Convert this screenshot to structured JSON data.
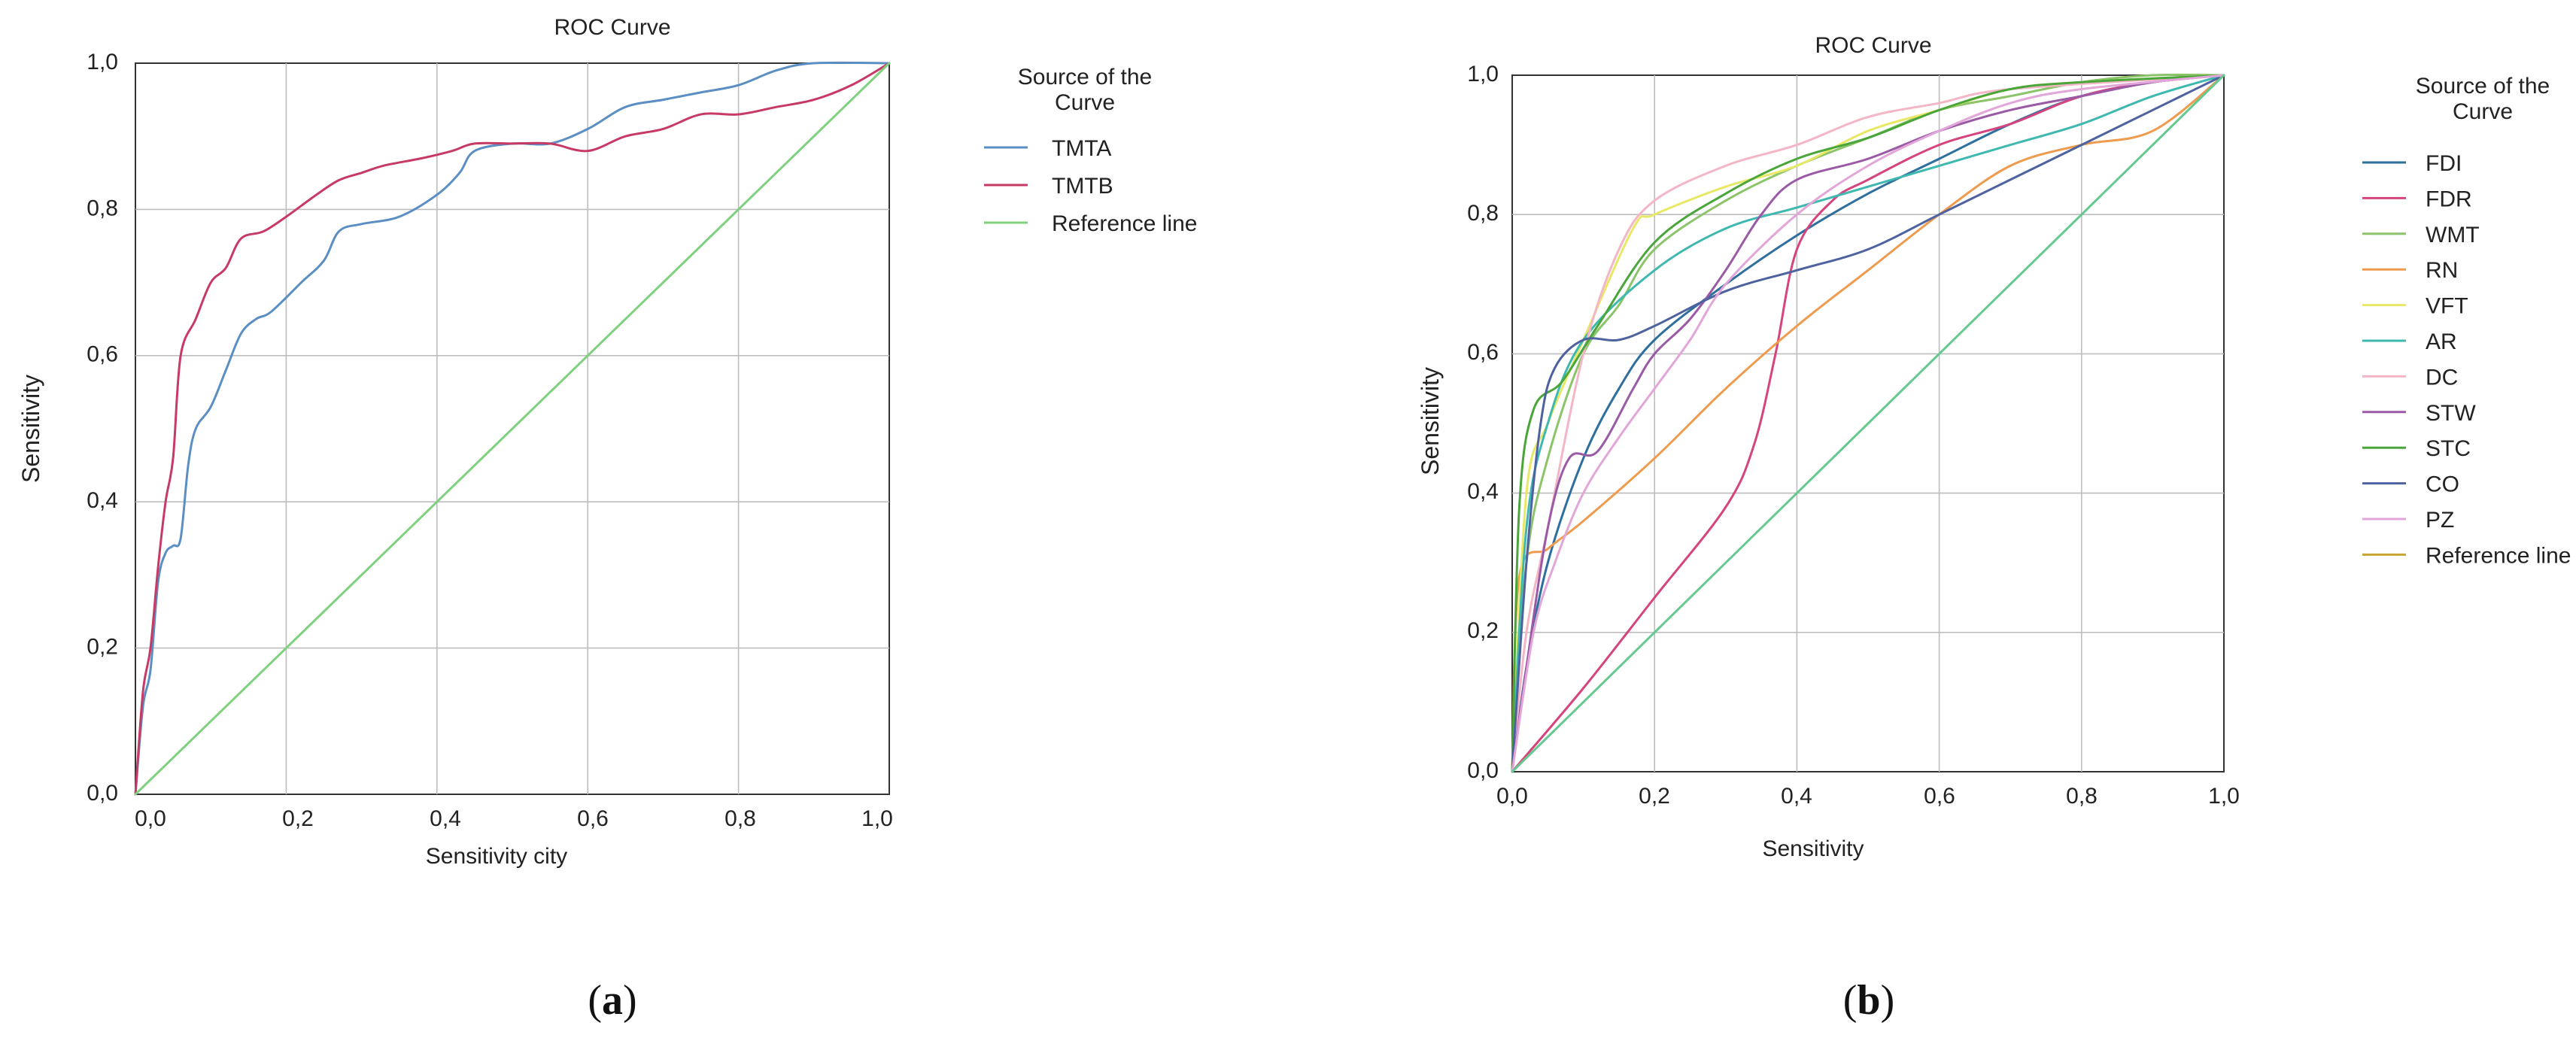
{
  "chart_data": [
    {
      "type": "line",
      "title": "ROC Curve",
      "xlabel": "Sensitivity city",
      "ylabel": "Sensitivity",
      "xlim": [
        0,
        1
      ],
      "ylim": [
        0,
        1
      ],
      "ticks": [
        "0,0",
        "0,2",
        "0,4",
        "0,6",
        "0,8",
        "1,0"
      ],
      "grid": true,
      "legend_title_line1": "Source of the",
      "legend_title_line2": "Curve",
      "panel_label": "(a)",
      "panel_letter": "a",
      "series": [
        {
          "name": "TMTA",
          "color": "#5b8fc4",
          "points": [
            [
              0,
              0
            ],
            [
              0.01,
              0.12
            ],
            [
              0.02,
              0.17
            ],
            [
              0.03,
              0.29
            ],
            [
              0.04,
              0.33
            ],
            [
              0.05,
              0.34
            ],
            [
              0.06,
              0.35
            ],
            [
              0.07,
              0.45
            ],
            [
              0.08,
              0.5
            ],
            [
              0.1,
              0.53
            ],
            [
              0.12,
              0.58
            ],
            [
              0.14,
              0.63
            ],
            [
              0.16,
              0.65
            ],
            [
              0.18,
              0.66
            ],
            [
              0.22,
              0.7
            ],
            [
              0.25,
              0.73
            ],
            [
              0.27,
              0.77
            ],
            [
              0.3,
              0.78
            ],
            [
              0.35,
              0.79
            ],
            [
              0.4,
              0.82
            ],
            [
              0.43,
              0.85
            ],
            [
              0.45,
              0.88
            ],
            [
              0.5,
              0.89
            ],
            [
              0.55,
              0.89
            ],
            [
              0.6,
              0.91
            ],
            [
              0.65,
              0.94
            ],
            [
              0.7,
              0.95
            ],
            [
              0.75,
              0.96
            ],
            [
              0.8,
              0.97
            ],
            [
              0.85,
              0.99
            ],
            [
              0.9,
              1.0
            ],
            [
              1,
              1
            ]
          ]
        },
        {
          "name": "TMTB",
          "color": "#c73a66",
          "points": [
            [
              0,
              0
            ],
            [
              0.01,
              0.14
            ],
            [
              0.02,
              0.2
            ],
            [
              0.03,
              0.31
            ],
            [
              0.04,
              0.4
            ],
            [
              0.05,
              0.46
            ],
            [
              0.06,
              0.6
            ],
            [
              0.08,
              0.65
            ],
            [
              0.1,
              0.7
            ],
            [
              0.12,
              0.72
            ],
            [
              0.14,
              0.76
            ],
            [
              0.17,
              0.77
            ],
            [
              0.2,
              0.79
            ],
            [
              0.24,
              0.82
            ],
            [
              0.27,
              0.84
            ],
            [
              0.3,
              0.85
            ],
            [
              0.33,
              0.86
            ],
            [
              0.38,
              0.87
            ],
            [
              0.42,
              0.88
            ],
            [
              0.45,
              0.89
            ],
            [
              0.5,
              0.89
            ],
            [
              0.55,
              0.89
            ],
            [
              0.6,
              0.88
            ],
            [
              0.65,
              0.9
            ],
            [
              0.7,
              0.91
            ],
            [
              0.75,
              0.93
            ],
            [
              0.8,
              0.93
            ],
            [
              0.85,
              0.94
            ],
            [
              0.9,
              0.95
            ],
            [
              0.95,
              0.97
            ],
            [
              1,
              1
            ]
          ]
        },
        {
          "name": "Reference line",
          "color": "#7fd17f",
          "points": [
            [
              0,
              0
            ],
            [
              1,
              1
            ]
          ]
        }
      ]
    },
    {
      "type": "line",
      "title": "ROC Curve",
      "xlabel": "Sensitivity",
      "ylabel": "Sensitivity",
      "xlim": [
        0,
        1
      ],
      "ylim": [
        0,
        1
      ],
      "ticks": [
        "0,0",
        "0,2",
        "0,4",
        "0,6",
        "0,8",
        "1,0"
      ],
      "grid": true,
      "legend_title_line1": "Source of the",
      "legend_title_line2": "Curve",
      "panel_label": "(b)",
      "panel_letter": "b",
      "series": [
        {
          "name": "FDI",
          "color": "#2e6f9e",
          "points": [
            [
              0,
              0
            ],
            [
              0.02,
              0.15
            ],
            [
              0.05,
              0.3
            ],
            [
              0.1,
              0.45
            ],
            [
              0.15,
              0.55
            ],
            [
              0.2,
              0.62
            ],
            [
              0.3,
              0.7
            ],
            [
              0.4,
              0.77
            ],
            [
              0.5,
              0.83
            ],
            [
              0.6,
              0.88
            ],
            [
              0.7,
              0.93
            ],
            [
              0.8,
              0.97
            ],
            [
              0.9,
              0.99
            ],
            [
              1,
              1
            ]
          ]
        },
        {
          "name": "FDR",
          "color": "#d6447e",
          "points": [
            [
              0,
              0
            ],
            [
              0.1,
              0.12
            ],
            [
              0.2,
              0.25
            ],
            [
              0.3,
              0.38
            ],
            [
              0.34,
              0.47
            ],
            [
              0.37,
              0.6
            ],
            [
              0.4,
              0.75
            ],
            [
              0.45,
              0.82
            ],
            [
              0.5,
              0.85
            ],
            [
              0.6,
              0.9
            ],
            [
              0.7,
              0.93
            ],
            [
              0.8,
              0.97
            ],
            [
              0.9,
              0.99
            ],
            [
              1,
              1
            ]
          ]
        },
        {
          "name": "WMT",
          "color": "#8cc46a",
          "points": [
            [
              0,
              0
            ],
            [
              0.02,
              0.3
            ],
            [
              0.05,
              0.45
            ],
            [
              0.1,
              0.6
            ],
            [
              0.15,
              0.67
            ],
            [
              0.2,
              0.75
            ],
            [
              0.3,
              0.82
            ],
            [
              0.4,
              0.87
            ],
            [
              0.5,
              0.91
            ],
            [
              0.6,
              0.95
            ],
            [
              0.7,
              0.97
            ],
            [
              0.8,
              0.99
            ],
            [
              0.9,
              1.0
            ],
            [
              1,
              1
            ]
          ]
        },
        {
          "name": "RN",
          "color": "#ee9b4e",
          "points": [
            [
              0,
              0
            ],
            [
              0.01,
              0.28
            ],
            [
              0.05,
              0.32
            ],
            [
              0.1,
              0.36
            ],
            [
              0.2,
              0.45
            ],
            [
              0.3,
              0.55
            ],
            [
              0.4,
              0.64
            ],
            [
              0.5,
              0.72
            ],
            [
              0.6,
              0.8
            ],
            [
              0.7,
              0.87
            ],
            [
              0.8,
              0.9
            ],
            [
              0.9,
              0.92
            ],
            [
              1,
              1
            ]
          ]
        },
        {
          "name": "VFT",
          "color": "#e8e866",
          "points": [
            [
              0,
              0
            ],
            [
              0.02,
              0.4
            ],
            [
              0.05,
              0.5
            ],
            [
              0.1,
              0.62
            ],
            [
              0.17,
              0.78
            ],
            [
              0.2,
              0.8
            ],
            [
              0.3,
              0.84
            ],
            [
              0.4,
              0.87
            ],
            [
              0.5,
              0.92
            ],
            [
              0.6,
              0.95
            ],
            [
              0.7,
              0.98
            ],
            [
              0.8,
              0.99
            ],
            [
              1,
              1
            ]
          ]
        },
        {
          "name": "AR",
          "color": "#3fb8b0",
          "points": [
            [
              0,
              0
            ],
            [
              0.02,
              0.35
            ],
            [
              0.05,
              0.5
            ],
            [
              0.1,
              0.62
            ],
            [
              0.2,
              0.72
            ],
            [
              0.3,
              0.78
            ],
            [
              0.4,
              0.81
            ],
            [
              0.5,
              0.84
            ],
            [
              0.6,
              0.87
            ],
            [
              0.7,
              0.9
            ],
            [
              0.8,
              0.93
            ],
            [
              0.9,
              0.97
            ],
            [
              1,
              1
            ]
          ]
        },
        {
          "name": "DC",
          "color": "#f4b6c6",
          "points": [
            [
              0,
              0
            ],
            [
              0.02,
              0.2
            ],
            [
              0.05,
              0.35
            ],
            [
              0.1,
              0.6
            ],
            [
              0.15,
              0.75
            ],
            [
              0.2,
              0.82
            ],
            [
              0.3,
              0.87
            ],
            [
              0.4,
              0.9
            ],
            [
              0.5,
              0.94
            ],
            [
              0.6,
              0.96
            ],
            [
              0.7,
              0.98
            ],
            [
              1,
              1
            ]
          ]
        },
        {
          "name": "STW",
          "color": "#9a5aa6",
          "points": [
            [
              0,
              0
            ],
            [
              0.02,
              0.15
            ],
            [
              0.05,
              0.35
            ],
            [
              0.08,
              0.45
            ],
            [
              0.12,
              0.46
            ],
            [
              0.17,
              0.55
            ],
            [
              0.2,
              0.6
            ],
            [
              0.25,
              0.65
            ],
            [
              0.3,
              0.72
            ],
            [
              0.35,
              0.8
            ],
            [
              0.4,
              0.85
            ],
            [
              0.5,
              0.88
            ],
            [
              0.6,
              0.92
            ],
            [
              0.7,
              0.95
            ],
            [
              0.8,
              0.97
            ],
            [
              0.9,
              0.99
            ],
            [
              1,
              1
            ]
          ]
        },
        {
          "name": "STC",
          "color": "#4aa63a",
          "points": [
            [
              0,
              0
            ],
            [
              0.01,
              0.38
            ],
            [
              0.03,
              0.52
            ],
            [
              0.07,
              0.56
            ],
            [
              0.12,
              0.64
            ],
            [
              0.2,
              0.76
            ],
            [
              0.3,
              0.83
            ],
            [
              0.4,
              0.88
            ],
            [
              0.5,
              0.91
            ],
            [
              0.6,
              0.95
            ],
            [
              0.7,
              0.98
            ],
            [
              0.8,
              0.99
            ],
            [
              1,
              1
            ]
          ]
        },
        {
          "name": "CO",
          "color": "#4e62a0",
          "points": [
            [
              0,
              0
            ],
            [
              0.02,
              0.3
            ],
            [
              0.04,
              0.5
            ],
            [
              0.06,
              0.58
            ],
            [
              0.1,
              0.62
            ],
            [
              0.15,
              0.62
            ],
            [
              0.2,
              0.64
            ],
            [
              0.3,
              0.69
            ],
            [
              0.4,
              0.72
            ],
            [
              0.5,
              0.75
            ],
            [
              0.6,
              0.8
            ],
            [
              0.7,
              0.85
            ],
            [
              0.8,
              0.9
            ],
            [
              0.9,
              0.95
            ],
            [
              1,
              1
            ]
          ]
        },
        {
          "name": "PZ",
          "color": "#e2a6d8",
          "points": [
            [
              0,
              0
            ],
            [
              0.03,
              0.2
            ],
            [
              0.06,
              0.3
            ],
            [
              0.1,
              0.4
            ],
            [
              0.15,
              0.48
            ],
            [
              0.2,
              0.55
            ],
            [
              0.25,
              0.62
            ],
            [
              0.3,
              0.7
            ],
            [
              0.4,
              0.8
            ],
            [
              0.5,
              0.87
            ],
            [
              0.6,
              0.92
            ],
            [
              0.7,
              0.96
            ],
            [
              0.8,
              0.98
            ],
            [
              1,
              1
            ]
          ]
        },
        {
          "name": "Reference line",
          "color": "#c9a634",
          "points": []
        },
        {
          "name": "reference-diagonal",
          "color": "#66c98f",
          "points": [
            [
              0,
              0
            ],
            [
              1,
              1
            ]
          ],
          "legend": false
        }
      ]
    }
  ]
}
